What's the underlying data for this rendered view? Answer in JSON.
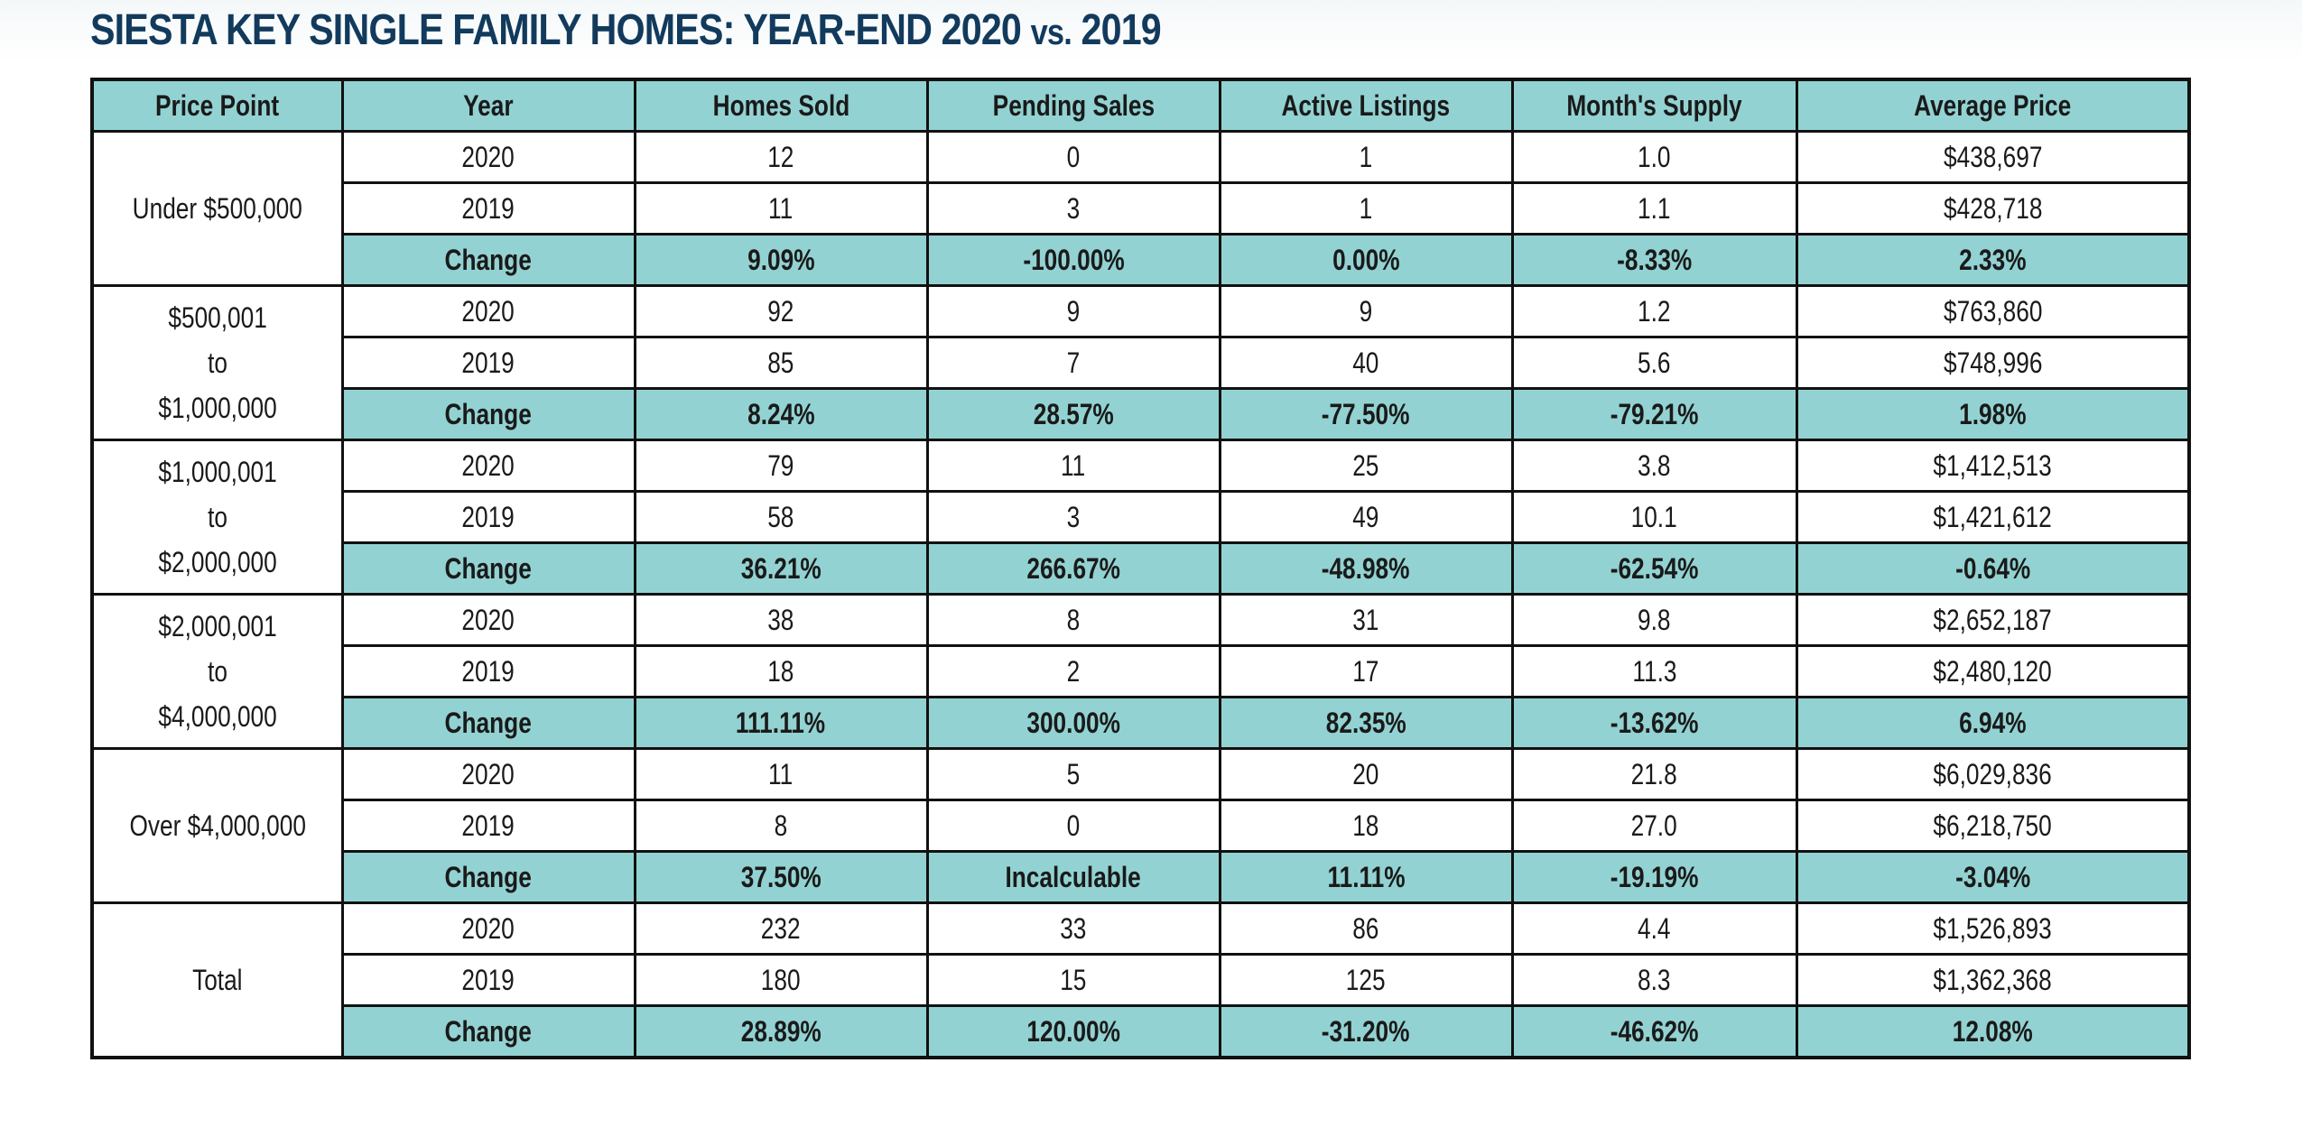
{
  "chart_data": {
    "type": "table",
    "title": "SIESTA KEY SINGLE FAMILY HOMES: YEAR-END 2020",
    "title_vs": "vs.",
    "title_end": "2019",
    "columns": [
      "Price Point",
      "Year",
      "Homes Sold",
      "Pending Sales",
      "Active Listings",
      "Month's Supply",
      "Average Price"
    ],
    "groups": [
      {
        "price_point": "Under $500,000",
        "rows": [
          {
            "year": "2020",
            "homes_sold": "12",
            "pending_sales": "0",
            "active_listings": "1",
            "months_supply": "1.0",
            "average_price": "$438,697"
          },
          {
            "year": "2019",
            "homes_sold": "11",
            "pending_sales": "3",
            "active_listings": "1",
            "months_supply": "1.1",
            "average_price": "$428,718"
          },
          {
            "year": "Change",
            "homes_sold": "9.09%",
            "pending_sales": "-100.00%",
            "active_listings": "0.00%",
            "months_supply": "-8.33%",
            "average_price": "2.33%"
          }
        ]
      },
      {
        "price_point": "$500,001\nto\n$1,000,000",
        "rows": [
          {
            "year": "2020",
            "homes_sold": "92",
            "pending_sales": "9",
            "active_listings": "9",
            "months_supply": "1.2",
            "average_price": "$763,860"
          },
          {
            "year": "2019",
            "homes_sold": "85",
            "pending_sales": "7",
            "active_listings": "40",
            "months_supply": "5.6",
            "average_price": "$748,996"
          },
          {
            "year": "Change",
            "homes_sold": "8.24%",
            "pending_sales": "28.57%",
            "active_listings": "-77.50%",
            "months_supply": "-79.21%",
            "average_price": "1.98%"
          }
        ]
      },
      {
        "price_point": "$1,000,001\nto\n$2,000,000",
        "rows": [
          {
            "year": "2020",
            "homes_sold": "79",
            "pending_sales": "11",
            "active_listings": "25",
            "months_supply": "3.8",
            "average_price": "$1,412,513"
          },
          {
            "year": "2019",
            "homes_sold": "58",
            "pending_sales": "3",
            "active_listings": "49",
            "months_supply": "10.1",
            "average_price": "$1,421,612"
          },
          {
            "year": "Change",
            "homes_sold": "36.21%",
            "pending_sales": "266.67%",
            "active_listings": "-48.98%",
            "months_supply": "-62.54%",
            "average_price": "-0.64%"
          }
        ]
      },
      {
        "price_point": "$2,000,001\nto\n$4,000,000",
        "rows": [
          {
            "year": "2020",
            "homes_sold": "38",
            "pending_sales": "8",
            "active_listings": "31",
            "months_supply": "9.8",
            "average_price": "$2,652,187"
          },
          {
            "year": "2019",
            "homes_sold": "18",
            "pending_sales": "2",
            "active_listings": "17",
            "months_supply": "11.3",
            "average_price": "$2,480,120"
          },
          {
            "year": "Change",
            "homes_sold": "111.11%",
            "pending_sales": "300.00%",
            "active_listings": "82.35%",
            "months_supply": "-13.62%",
            "average_price": "6.94%"
          }
        ]
      },
      {
        "price_point": "Over $4,000,000",
        "rows": [
          {
            "year": "2020",
            "homes_sold": "11",
            "pending_sales": "5",
            "active_listings": "20",
            "months_supply": "21.8",
            "average_price": "$6,029,836"
          },
          {
            "year": "2019",
            "homes_sold": "8",
            "pending_sales": "0",
            "active_listings": "18",
            "months_supply": "27.0",
            "average_price": "$6,218,750"
          },
          {
            "year": "Change",
            "homes_sold": "37.50%",
            "pending_sales": "Incalculable",
            "active_listings": "11.11%",
            "months_supply": "-19.19%",
            "average_price": "-3.04%"
          }
        ]
      },
      {
        "price_point": "Total",
        "rows": [
          {
            "year": "2020",
            "homes_sold": "232",
            "pending_sales": "33",
            "active_listings": "86",
            "months_supply": "4.4",
            "average_price": "$1,526,893"
          },
          {
            "year": "2019",
            "homes_sold": "180",
            "pending_sales": "15",
            "active_listings": "125",
            "months_supply": "8.3",
            "average_price": "$1,362,368"
          },
          {
            "year": "Change",
            "homes_sold": "28.89%",
            "pending_sales": "120.00%",
            "active_listings": "-31.20%",
            "months_supply": "-46.62%",
            "average_price": "12.08%"
          }
        ]
      }
    ],
    "colors": {
      "header_fill": "#93d2d2",
      "row_fill": "#ffffff",
      "title_color": "#123a5c",
      "border": "#111111"
    }
  }
}
